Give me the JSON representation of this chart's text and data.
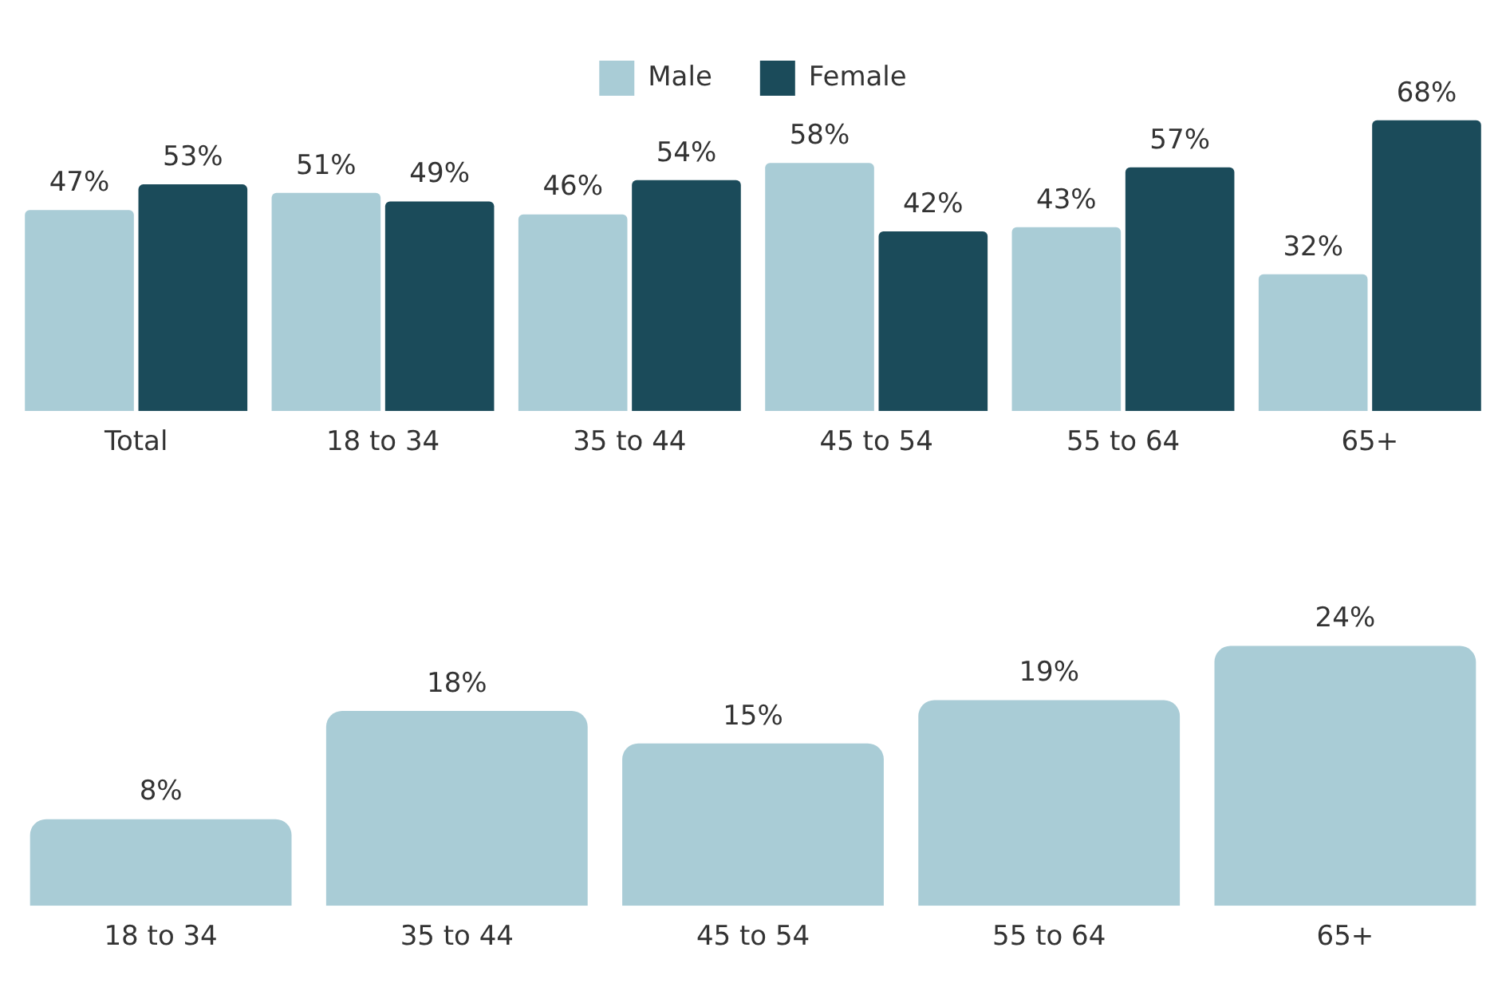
{
  "chart_data": [
    {
      "type": "bar",
      "categories": [
        "Total",
        "18 to 34",
        "35 to 44",
        "45 to 54",
        "55 to 64",
        "65+"
      ],
      "series": [
        {
          "name": "Male",
          "color": "#a9ccd6",
          "values": [
            47,
            51,
            46,
            58,
            43,
            32
          ],
          "value_labels": [
            "47%",
            "51%",
            "46%",
            "58%",
            "43%",
            "32%"
          ]
        },
        {
          "name": "Female",
          "color": "#1b4b5a",
          "values": [
            53,
            49,
            54,
            42,
            57,
            68
          ],
          "value_labels": [
            "53%",
            "49%",
            "54%",
            "42%",
            "57%",
            "68%"
          ]
        }
      ],
      "legend": "top",
      "grid": false
    },
    {
      "type": "bar",
      "categories": [
        "18 to 34",
        "35 to 44",
        "45 to 54",
        "55 to 64",
        "65+"
      ],
      "values": [
        8,
        18,
        15,
        19,
        24
      ],
      "value_labels": [
        "8%",
        "18%",
        "15%",
        "19%",
        "24%"
      ],
      "color": "#a9ccd6",
      "grid": false
    }
  ]
}
